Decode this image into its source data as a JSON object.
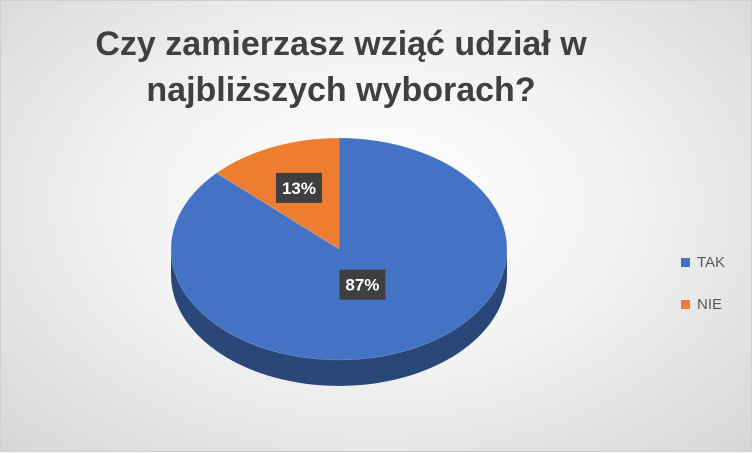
{
  "chart_data": {
    "type": "pie",
    "title_lines": [
      "Czy zamierzasz wziąć udział w",
      "najbliższych wyborach?"
    ],
    "categories": [
      "TAK",
      "NIE"
    ],
    "values": [
      87,
      13
    ],
    "data_labels": [
      "87%",
      "13%"
    ],
    "colors": [
      "#4472C4",
      "#ED7D31"
    ],
    "legend_position": "right"
  }
}
